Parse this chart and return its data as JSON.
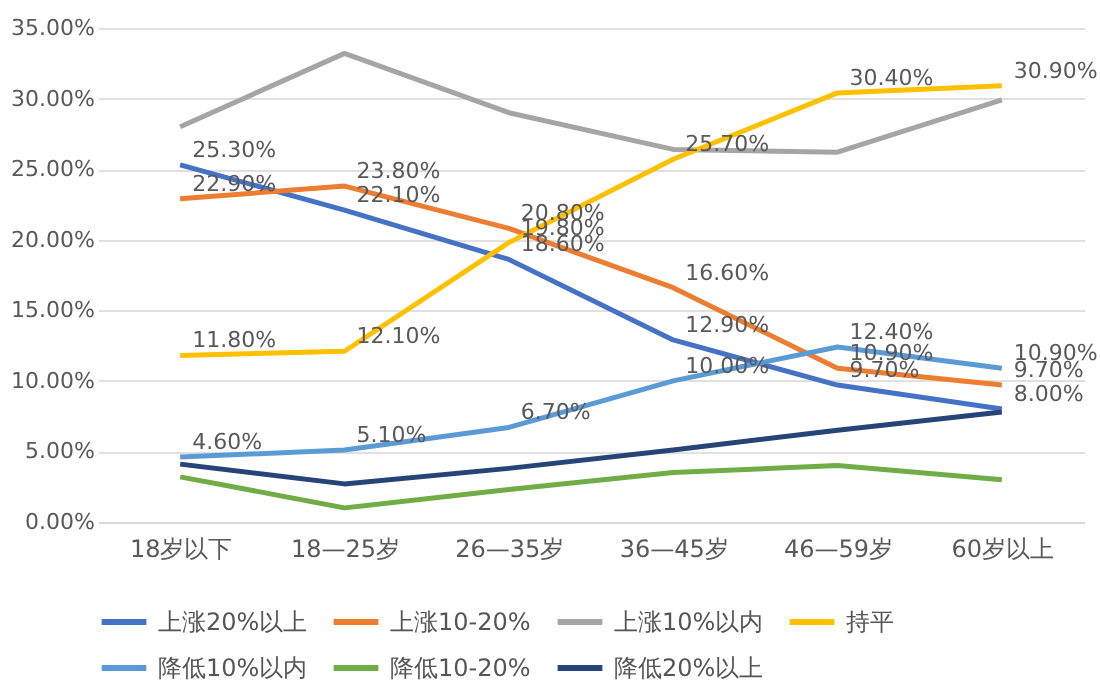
{
  "chart_data": {
    "type": "line",
    "categories": [
      "18岁以下",
      "18—25岁",
      "26—35岁",
      "36—45岁",
      "46—59岁",
      "60岁以上"
    ],
    "ylim": [
      0,
      35
    ],
    "yticks": [
      {
        "value": 0,
        "label": "0.00%"
      },
      {
        "value": 5,
        "label": "5.00%"
      },
      {
        "value": 10,
        "label": "10.00%"
      },
      {
        "value": 15,
        "label": "15.00%"
      },
      {
        "value": 20,
        "label": "20.00%"
      },
      {
        "value": 25,
        "label": "25.00%"
      },
      {
        "value": 30,
        "label": "30.00%"
      },
      {
        "value": 35,
        "label": "35.00%"
      }
    ],
    "grid": "y",
    "legend": "bottom",
    "marker": "none",
    "line_style": "solid",
    "series": [
      {
        "name": "上涨20%以上",
        "color": "#4472c4",
        "values": [
          25.3,
          22.1,
          18.6,
          12.9,
          9.7,
          8.0
        ],
        "value_labels": [
          "25.30%",
          "22.10%",
          "18.60%",
          "12.90%",
          "9.70%",
          "8.00%"
        ]
      },
      {
        "name": "上涨10-20%",
        "color": "#ed7d31",
        "values": [
          22.9,
          23.8,
          20.8,
          16.6,
          10.9,
          9.7
        ],
        "value_labels": [
          "22.90%",
          "23.80%",
          "20.80%",
          "16.60%",
          "10.90%",
          "9.70%"
        ]
      },
      {
        "name": "上涨10%以内",
        "color": "#a5a5a5",
        "values": [
          28.0,
          33.2,
          29.0,
          26.4,
          26.2,
          29.9
        ],
        "value_labels": [
          null,
          null,
          null,
          null,
          null,
          null
        ]
      },
      {
        "name": "持平",
        "color": "#ffc000",
        "values": [
          11.8,
          12.1,
          19.8,
          25.7,
          30.4,
          30.9
        ],
        "value_labels": [
          "11.80%",
          "12.10%",
          "19.80%",
          "25.70%",
          "30.40%",
          "30.90%"
        ]
      },
      {
        "name": "降低10%以内",
        "color": "#5b9bd5",
        "values": [
          4.6,
          5.1,
          6.7,
          10.0,
          12.4,
          10.9
        ],
        "value_labels": [
          "4.60%",
          "5.10%",
          "6.70%",
          "10.00%",
          "12.40%",
          "10.90%"
        ]
      },
      {
        "name": "降低10-20%",
        "color": "#70ad47",
        "values": [
          3.2,
          1.0,
          2.3,
          3.5,
          4.0,
          3.0
        ],
        "value_labels": [
          null,
          null,
          null,
          null,
          null,
          null
        ]
      },
      {
        "name": "降低20%以上",
        "color": "#264478",
        "values": [
          4.1,
          2.7,
          3.8,
          5.1,
          6.5,
          7.8
        ],
        "value_labels": [
          null,
          null,
          null,
          null,
          null,
          null
        ]
      }
    ]
  }
}
